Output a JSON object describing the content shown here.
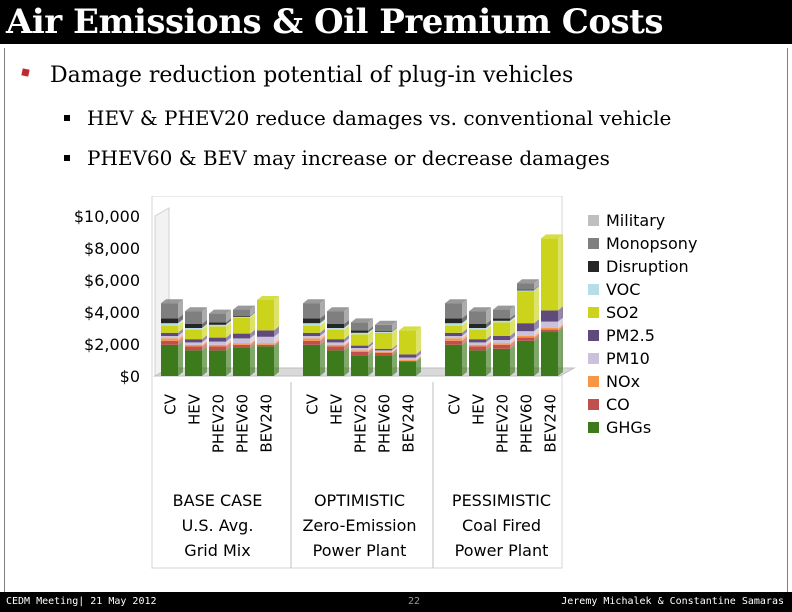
{
  "slide": {
    "title": "Air Emissions & Oil Premium Costs",
    "bullets": [
      {
        "text": "Damage reduction potential of plug-in vehicles"
      },
      {
        "text": "HEV & PHEV20 reduce damages vs. conventional vehicle"
      },
      {
        "text": "PHEV60 & BEV may increase or decrease damages"
      }
    ]
  },
  "footer": {
    "left": "CEDM Meeting| 21 May 2012",
    "page": "22",
    "right": "Jeremy Michalek & Constantine Samaras"
  },
  "chart_data": {
    "type": "bar",
    "stacked": true,
    "yaxis_ticks": [
      "$0",
      "$2,000",
      "$4,000",
      "$6,000",
      "$8,000",
      "$10,000"
    ],
    "ylim": [
      0,
      10000
    ],
    "grid": false,
    "legend_position": "right",
    "groups": [
      {
        "label_lines": [
          "BASE CASE",
          "U.S. Avg.",
          "Grid Mix"
        ],
        "categories": [
          "CV",
          "HEV",
          "PHEV20",
          "PHEV60",
          "BEV240"
        ]
      },
      {
        "label_lines": [
          "OPTIMISTIC",
          "Zero-Emission",
          "Power Plant"
        ],
        "categories": [
          "CV",
          "HEV",
          "PHEV20",
          "PHEV60",
          "BEV240"
        ]
      },
      {
        "label_lines": [
          "PESSIMISTIC",
          "Coal Fired",
          "Power Plant"
        ],
        "categories": [
          "CV",
          "HEV",
          "PHEV20",
          "PHEV60",
          "BEV240"
        ]
      }
    ],
    "series": [
      {
        "name": "GHGs",
        "color": "#3d7a1c",
        "values": [
          1950,
          1600,
          1600,
          1750,
          1850,
          1950,
          1600,
          1300,
          1300,
          900,
          1950,
          1600,
          1700,
          2200,
          2800
        ]
      },
      {
        "name": "CO",
        "color": "#c0504d",
        "values": [
          250,
          250,
          250,
          200,
          100,
          250,
          250,
          200,
          150,
          50,
          250,
          250,
          250,
          200,
          100
        ]
      },
      {
        "name": "NOx",
        "color": "#f79646",
        "values": [
          150,
          100,
          100,
          100,
          100,
          150,
          100,
          100,
          50,
          50,
          150,
          100,
          100,
          100,
          100
        ]
      },
      {
        "name": "PM10",
        "color": "#ccc1da",
        "values": [
          150,
          150,
          200,
          300,
          400,
          150,
          150,
          150,
          100,
          150,
          150,
          150,
          200,
          300,
          400
        ]
      },
      {
        "name": "PM2.5",
        "color": "#604a7b",
        "values": [
          200,
          200,
          250,
          300,
          400,
          200,
          200,
          150,
          100,
          200,
          200,
          200,
          250,
          500,
          700
        ]
      },
      {
        "name": "SO2",
        "color": "#cbd41a",
        "values": [
          450,
          600,
          700,
          1000,
          1900,
          450,
          600,
          700,
          1000,
          1500,
          450,
          600,
          850,
          2000,
          4500
        ]
      },
      {
        "name": "VOC",
        "color": "#b7dee8",
        "values": [
          150,
          100,
          100,
          50,
          0,
          150,
          100,
          100,
          50,
          0,
          150,
          100,
          100,
          50,
          0
        ]
      },
      {
        "name": "Disruption",
        "color": "#262626",
        "values": [
          300,
          250,
          150,
          50,
          0,
          300,
          250,
          150,
          50,
          0,
          300,
          250,
          150,
          50,
          0
        ]
      },
      {
        "name": "Monopsony",
        "color": "#7f7f7f",
        "values": [
          950,
          800,
          550,
          400,
          0,
          950,
          800,
          500,
          400,
          0,
          950,
          800,
          550,
          400,
          0
        ]
      },
      {
        "name": "Military",
        "color": "#bfbfbf",
        "values": [
          0,
          0,
          0,
          0,
          0,
          0,
          0,
          0,
          0,
          0,
          0,
          0,
          0,
          0,
          0
        ]
      }
    ]
  }
}
